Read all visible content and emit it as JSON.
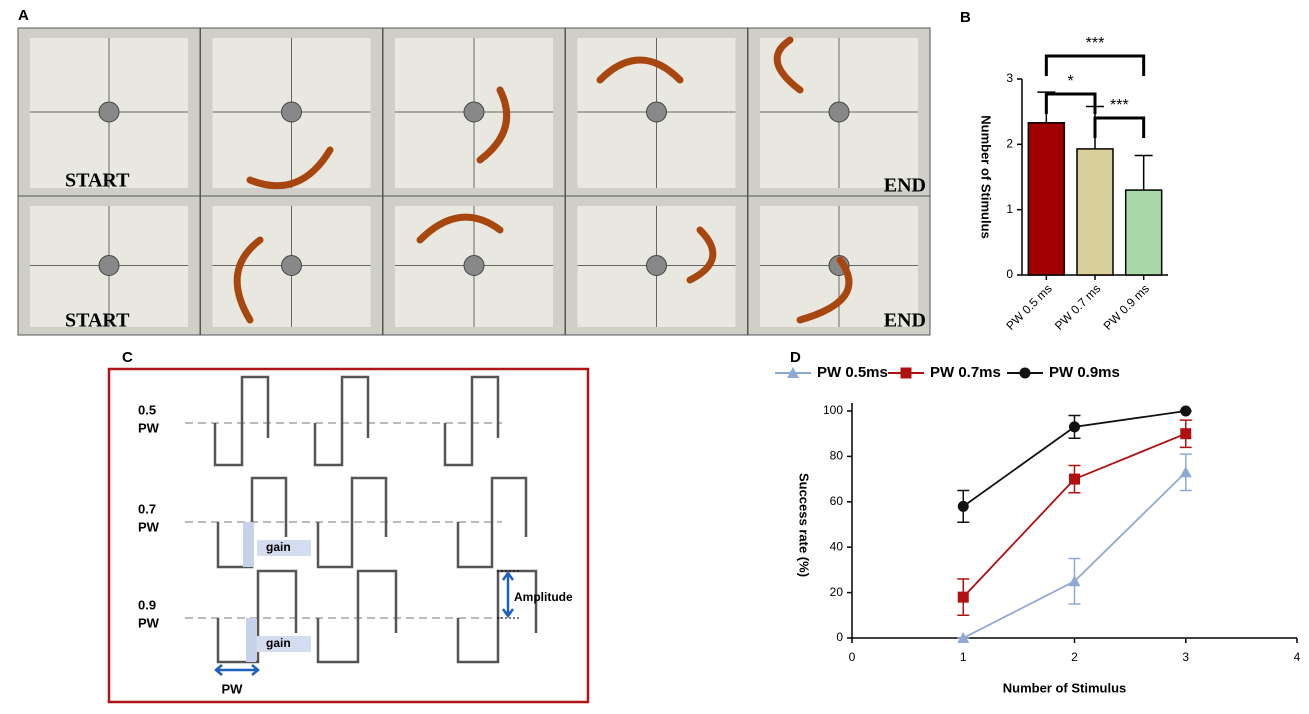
{
  "panel_letters": [
    "A",
    "B",
    "C",
    "D"
  ],
  "panel_a": {
    "labels": [
      "START",
      "END",
      "START",
      "END"
    ]
  },
  "panel_c": {
    "rows": [
      [
        "0.5",
        "PW"
      ],
      [
        "0.7",
        "PW"
      ],
      [
        "0.9",
        "PW"
      ]
    ],
    "gain": [
      "gain",
      "gain"
    ],
    "amplitude": "Amplitude",
    "pw": "PW"
  },
  "chart_data": [
    {
      "type": "bar",
      "y_label": "Number of Stimulus",
      "categories": [
        "PW 0.5 ms",
        "PW 0.7 ms",
        "PW 0.9 ms"
      ],
      "values": [
        2.33,
        1.93,
        1.3
      ],
      "errors": [
        0.47,
        0.65,
        0.53
      ],
      "colors": [
        "#a00000",
        "#d9d19c",
        "#a9d9a9"
      ],
      "ylim": [
        0,
        3
      ],
      "yticks": [
        0,
        1,
        2,
        3
      ],
      "annotations": [
        "***",
        "*",
        "***"
      ]
    },
    {
      "type": "line",
      "x_label": "Number of Stimulus",
      "y_label": "Success rate (%)",
      "x": [
        1,
        2,
        3
      ],
      "xlim": [
        0,
        4
      ],
      "xticks": [
        0,
        1,
        2,
        3,
        4
      ],
      "ylim": [
        0,
        100
      ],
      "yticks": [
        0,
        20,
        40,
        60,
        80,
        100
      ],
      "legend": "top",
      "series": [
        {
          "name": "PW 0.5ms",
          "color": "#8fa9d6",
          "marker": "triangle",
          "values": [
            0,
            25,
            73
          ],
          "errors": [
            0,
            10,
            8
          ]
        },
        {
          "name": "PW 0.7ms",
          "color": "#b01010",
          "marker": "square",
          "values": [
            18,
            70,
            90
          ],
          "errors": [
            8,
            6,
            6
          ]
        },
        {
          "name": "PW 0.9ms",
          "color": "#111111",
          "marker": "circle",
          "values": [
            58,
            93,
            100
          ],
          "errors": [
            7,
            5,
            0
          ]
        }
      ]
    }
  ]
}
